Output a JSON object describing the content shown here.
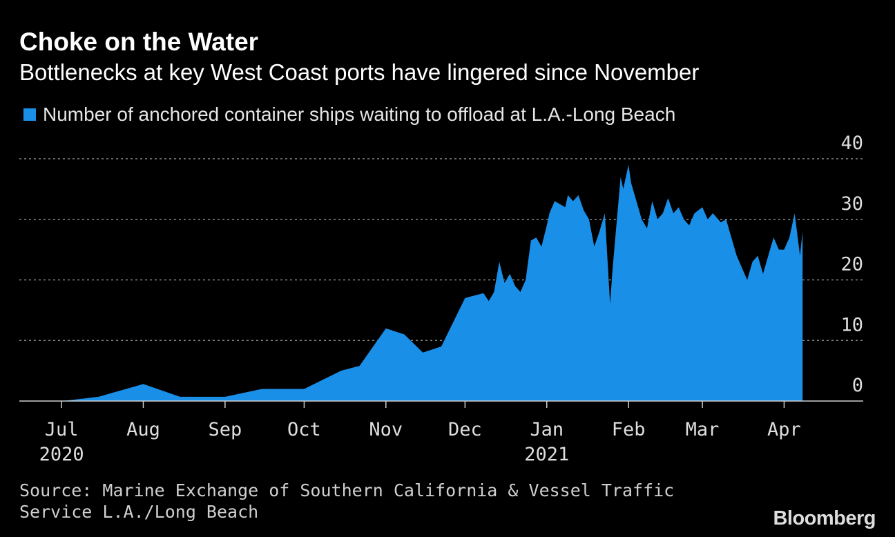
{
  "title": "Choke on the Water",
  "subtitle": "Bottlenecks at key West Coast ports have lingered since November",
  "legend": {
    "label": "Number of anchored container ships waiting to offload at L.A.-Long Beach",
    "color": "#1a8fe8"
  },
  "source": "Source: Marine Exchange of Southern California & Vessel Traffic Service L.A./Long Beach",
  "brand": "Bloomberg",
  "chart_data": {
    "type": "area",
    "series": [
      {
        "name": "Number of anchored container ships waiting to offload at L.A.-Long Beach",
        "color": "#1a8fe8",
        "points": [
          [
            "2020-07-01",
            0
          ],
          [
            "2020-07-15",
            0.7
          ],
          [
            "2020-08-01",
            2.8
          ],
          [
            "2020-08-15",
            0.7
          ],
          [
            "2020-09-01",
            0.7
          ],
          [
            "2020-09-15",
            2
          ],
          [
            "2020-10-01",
            2
          ],
          [
            "2020-10-15",
            5
          ],
          [
            "2020-10-22",
            5.8
          ],
          [
            "2020-11-01",
            12
          ],
          [
            "2020-11-08",
            11
          ],
          [
            "2020-11-15",
            8
          ],
          [
            "2020-11-22",
            9
          ],
          [
            "2020-12-01",
            17
          ],
          [
            "2020-12-08",
            17.8
          ],
          [
            "2020-12-10",
            16.5
          ],
          [
            "2020-12-12",
            18
          ],
          [
            "2020-12-14",
            23
          ],
          [
            "2020-12-16",
            19.5
          ],
          [
            "2020-12-18",
            21
          ],
          [
            "2020-12-20",
            19
          ],
          [
            "2020-12-22",
            18
          ],
          [
            "2020-12-24",
            20
          ],
          [
            "2020-12-26",
            26.5
          ],
          [
            "2020-12-28",
            27
          ],
          [
            "2020-12-30",
            25.5
          ],
          [
            "2021-01-01",
            29
          ],
          [
            "2021-01-02",
            31
          ],
          [
            "2021-01-04",
            33
          ],
          [
            "2021-01-06",
            32.5
          ],
          [
            "2021-01-08",
            32
          ],
          [
            "2021-01-09",
            34
          ],
          [
            "2021-01-11",
            33
          ],
          [
            "2021-01-13",
            34
          ],
          [
            "2021-01-15",
            31.5
          ],
          [
            "2021-01-17",
            30
          ],
          [
            "2021-01-19",
            25.5
          ],
          [
            "2021-01-21",
            28
          ],
          [
            "2021-01-23",
            31
          ],
          [
            "2021-01-25",
            16
          ],
          [
            "2021-01-26",
            22
          ],
          [
            "2021-01-27",
            27
          ],
          [
            "2021-01-29",
            37
          ],
          [
            "2021-01-30",
            35
          ],
          [
            "2021-02-01",
            39
          ],
          [
            "2021-02-02",
            36
          ],
          [
            "2021-02-04",
            33
          ],
          [
            "2021-02-06",
            30
          ],
          [
            "2021-02-08",
            28.5
          ],
          [
            "2021-02-10",
            33
          ],
          [
            "2021-02-12",
            30
          ],
          [
            "2021-02-14",
            31
          ],
          [
            "2021-02-16",
            33.5
          ],
          [
            "2021-02-18",
            31
          ],
          [
            "2021-02-20",
            32
          ],
          [
            "2021-02-22",
            30
          ],
          [
            "2021-02-24",
            29
          ],
          [
            "2021-02-26",
            31
          ],
          [
            "2021-03-01",
            32
          ],
          [
            "2021-03-03",
            30
          ],
          [
            "2021-03-05",
            31
          ],
          [
            "2021-03-08",
            29.5
          ],
          [
            "2021-03-10",
            30
          ],
          [
            "2021-03-12",
            27
          ],
          [
            "2021-03-14",
            24
          ],
          [
            "2021-03-16",
            22
          ],
          [
            "2021-03-18",
            20
          ],
          [
            "2021-03-20",
            23
          ],
          [
            "2021-03-22",
            24
          ],
          [
            "2021-03-24",
            21
          ],
          [
            "2021-03-26",
            24
          ],
          [
            "2021-03-28",
            27
          ],
          [
            "2021-03-30",
            25
          ],
          [
            "2021-04-01",
            25
          ],
          [
            "2021-04-03",
            27
          ],
          [
            "2021-04-05",
            31
          ],
          [
            "2021-04-07",
            24
          ],
          [
            "2021-04-08",
            28
          ]
        ]
      }
    ],
    "x_ticks": [
      {
        "date": "2020-07-01",
        "label": "Jul",
        "year": "2020"
      },
      {
        "date": "2020-08-01",
        "label": "Aug",
        "year": ""
      },
      {
        "date": "2020-09-01",
        "label": "Sep",
        "year": ""
      },
      {
        "date": "2020-10-01",
        "label": "Oct",
        "year": ""
      },
      {
        "date": "2020-11-01",
        "label": "Nov",
        "year": ""
      },
      {
        "date": "2020-12-01",
        "label": "Dec",
        "year": ""
      },
      {
        "date": "2021-01-01",
        "label": "Jan",
        "year": "2021"
      },
      {
        "date": "2021-02-01",
        "label": "Feb",
        "year": ""
      },
      {
        "date": "2021-03-01",
        "label": "Mar",
        "year": ""
      },
      {
        "date": "2021-04-01",
        "label": "Apr",
        "year": ""
      }
    ],
    "y_ticks": [
      0,
      10,
      20,
      30,
      40
    ],
    "ylim": [
      0,
      40
    ],
    "xlim": [
      "2020-06-15",
      "2021-05-01"
    ],
    "grid": "horizontal-dotted",
    "legend_position": "top-left",
    "y_axis_position": "right"
  }
}
